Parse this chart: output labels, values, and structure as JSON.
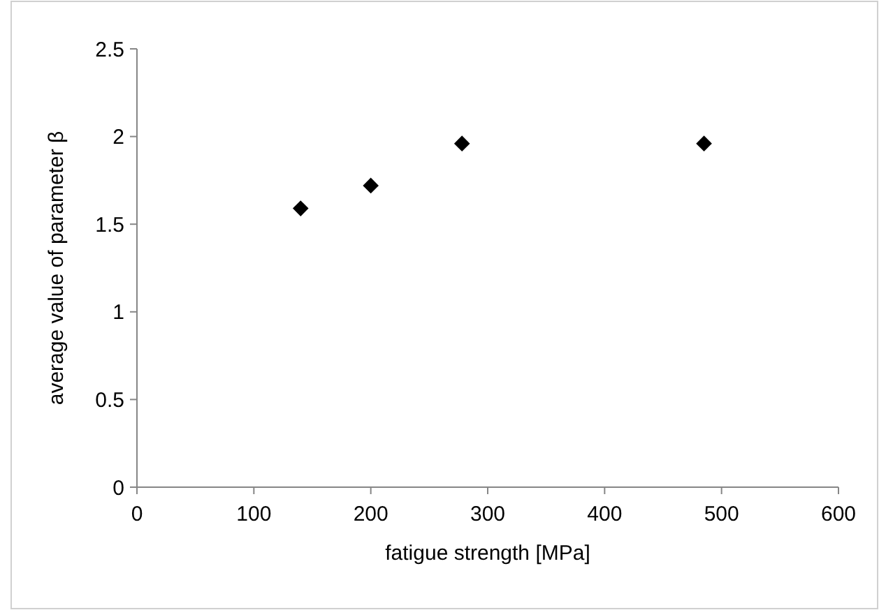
{
  "chart_data": {
    "type": "scatter",
    "xlabel": "fatigue strength [MPa]",
    "ylabel": "average value of parameter β",
    "x": [
      140,
      200,
      278,
      485
    ],
    "values": [
      1.59,
      1.72,
      1.96,
      1.96
    ],
    "color": "#000000",
    "marker": "diamond",
    "xlim": [
      0,
      600
    ],
    "xticks": [
      0,
      100,
      200,
      300,
      400,
      500,
      600
    ],
    "ylim": [
      0,
      2.5
    ],
    "yticks": [
      0,
      0.5,
      1,
      1.5,
      2,
      2.5
    ],
    "grid": false
  }
}
